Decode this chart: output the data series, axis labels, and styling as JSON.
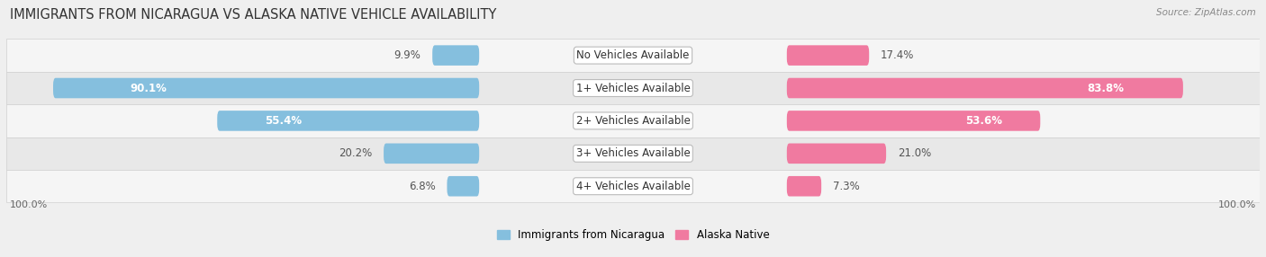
{
  "title": "IMMIGRANTS FROM NICARAGUA VS ALASKA NATIVE VEHICLE AVAILABILITY",
  "source": "Source: ZipAtlas.com",
  "categories": [
    "No Vehicles Available",
    "1+ Vehicles Available",
    "2+ Vehicles Available",
    "3+ Vehicles Available",
    "4+ Vehicles Available"
  ],
  "nicaragua_values": [
    9.9,
    90.1,
    55.4,
    20.2,
    6.8
  ],
  "alaska_values": [
    17.4,
    83.8,
    53.6,
    21.0,
    7.3
  ],
  "nicaragua_color": "#85BFDE",
  "alaska_color": "#F07AA0",
  "nicaragua_color_dark": "#5A9EC0",
  "alaska_color_dark": "#E0507A",
  "nicaragua_label": "Immigrants from Nicaragua",
  "alaska_label": "Alaska Native",
  "bar_height": 0.62,
  "bg_color": "#efefef",
  "row_colors": [
    "#f5f5f5",
    "#e8e8e8"
  ],
  "max_value": 100.0,
  "title_fontsize": 10.5,
  "label_fontsize": 8.5,
  "value_fontsize": 8.5,
  "tick_fontsize": 8,
  "xlim": 55
}
